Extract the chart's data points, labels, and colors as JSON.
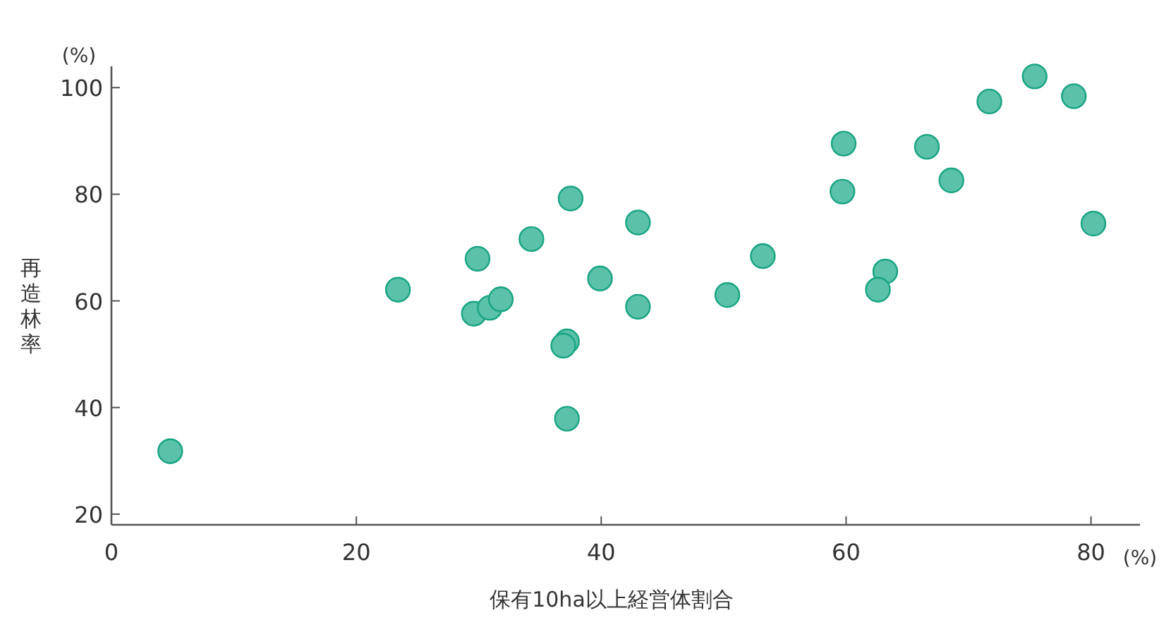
{
  "chart_data": {
    "type": "scatter",
    "xlabel": "保有10ha以上経営体割合",
    "ylabel": "再造林率",
    "annotations": [
      "(%)",
      "(%)"
    ],
    "x": [
      4.8,
      23.4,
      29.9,
      29.6,
      30.9,
      31.8,
      34.3,
      37.5,
      37.2,
      36.9,
      37.2,
      39.9,
      43.0,
      43.0,
      50.3,
      53.2,
      59.8,
      59.7,
      63.2,
      62.6,
      66.6,
      68.6,
      71.7,
      75.4,
      78.6,
      80.2
    ],
    "values": [
      31.8,
      62.1,
      67.9,
      57.6,
      58.7,
      60.3,
      71.6,
      79.2,
      52.4,
      51.6,
      37.9,
      64.2,
      74.7,
      58.9,
      61.1,
      68.4,
      89.5,
      80.5,
      65.5,
      62.1,
      88.9,
      82.6,
      97.4,
      102.1,
      98.4,
      74.5
    ],
    "color": "#5bc1a8",
    "marker": "circle",
    "xlim": [
      0,
      84
    ],
    "xticks": [
      0,
      20,
      40,
      60,
      80
    ],
    "ylim": [
      18,
      104
    ],
    "yticks": [
      20,
      40,
      60,
      80,
      100
    ]
  }
}
